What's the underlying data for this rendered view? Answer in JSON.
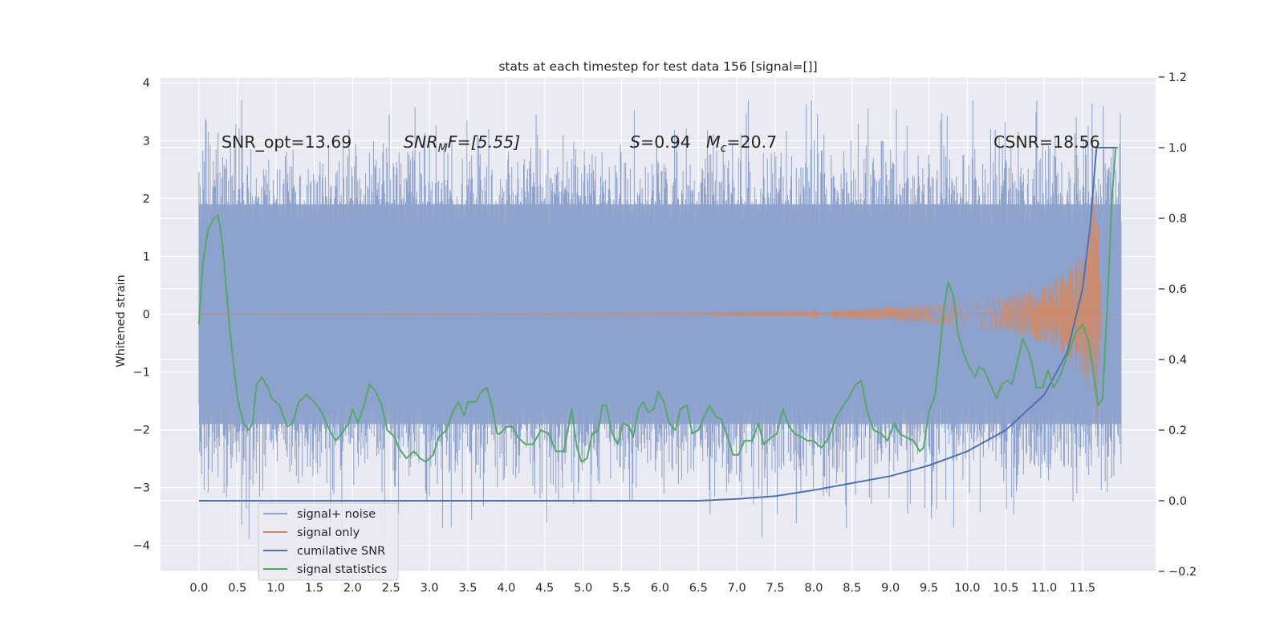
{
  "chart_data": {
    "type": "line",
    "title": "stats at each timestep for test data 156 [signal=[]]",
    "xlabel": "",
    "ylabel": "Whitened strain",
    "xlim": [
      -0.5,
      12.45
    ],
    "ylim": [
      -4.45,
      4.1
    ],
    "y2lim": [
      -0.2,
      1.2
    ],
    "xticks": [
      "0.0",
      "0.5",
      "1.0",
      "1.5",
      "2.0",
      "2.5",
      "3.0",
      "3.5",
      "4.0",
      "4.5",
      "5.0",
      "5.5",
      "6.0",
      "6.5",
      "7.0",
      "7.5",
      "8.0",
      "8.5",
      "9.0",
      "9.5",
      "10.0",
      "10.5",
      "11.0",
      "11.5"
    ],
    "yticks": [
      "−4",
      "−3",
      "−2",
      "−1",
      "0",
      "1",
      "2",
      "3",
      "4"
    ],
    "y2ticks": [
      "−0.2",
      "0.0",
      "0.2",
      "0.4",
      "0.6",
      "0.8",
      "1.0",
      "1.2"
    ],
    "grid": true,
    "legend_position": "lower-left",
    "annotations": {
      "snr_opt": "SNR_opt=13.69",
      "snr_mf_base": "SNR",
      "snr_mf_sub": "M",
      "snr_mf_rest": "F=[5.55]",
      "s_var": "S",
      "s_val": "=0.94",
      "mc_var": "M",
      "mc_sub": "c",
      "mc_val": "=20.7",
      "csnr": "CSNR=18.56"
    },
    "series": [
      {
        "name": "signal+ noise",
        "color": "#8da2cc",
        "axis": "left",
        "style": "noise band, approx ±1.9 core with spikes to ±3.7",
        "x_range": [
          0.0,
          12.0
        ]
      },
      {
        "name": "signal only",
        "color": "#dd8452",
        "axis": "left",
        "style": "chirp, growing amplitude",
        "amplitude_points": [
          [
            0.0,
            0.0
          ],
          [
            6.5,
            0.02
          ],
          [
            8.0,
            0.06
          ],
          [
            9.5,
            0.15
          ],
          [
            10.5,
            0.3
          ],
          [
            11.0,
            0.5
          ],
          [
            11.3,
            0.75
          ],
          [
            11.5,
            1.1
          ],
          [
            11.6,
            1.5
          ],
          [
            11.68,
            2.4
          ],
          [
            11.75,
            0.0
          ]
        ]
      },
      {
        "name": "cumilative SNR",
        "color": "#4c72b0",
        "axis": "right",
        "points": [
          [
            0.0,
            0.0
          ],
          [
            6.5,
            0.0
          ],
          [
            7.0,
            0.005
          ],
          [
            7.5,
            0.013
          ],
          [
            8.0,
            0.03
          ],
          [
            8.5,
            0.05
          ],
          [
            9.0,
            0.07
          ],
          [
            9.5,
            0.1
          ],
          [
            10.0,
            0.14
          ],
          [
            10.5,
            0.2
          ],
          [
            11.0,
            0.3
          ],
          [
            11.3,
            0.42
          ],
          [
            11.5,
            0.6
          ],
          [
            11.6,
            0.78
          ],
          [
            11.68,
            1.0
          ],
          [
            11.95,
            1.0
          ]
        ]
      },
      {
        "name": "signal statistics",
        "color": "#55a868",
        "axis": "right",
        "points": [
          [
            0.0,
            0.5
          ],
          [
            0.05,
            0.67
          ],
          [
            0.12,
            0.77
          ],
          [
            0.2,
            0.8
          ],
          [
            0.25,
            0.81
          ],
          [
            0.3,
            0.74
          ],
          [
            0.4,
            0.49
          ],
          [
            0.5,
            0.29
          ],
          [
            0.58,
            0.22
          ],
          [
            0.65,
            0.2
          ],
          [
            0.7,
            0.22
          ],
          [
            0.75,
            0.33
          ],
          [
            0.82,
            0.35
          ],
          [
            0.9,
            0.32
          ],
          [
            0.95,
            0.29
          ],
          [
            1.05,
            0.27
          ],
          [
            1.15,
            0.21
          ],
          [
            1.22,
            0.22
          ],
          [
            1.3,
            0.28
          ],
          [
            1.4,
            0.3
          ],
          [
            1.5,
            0.28
          ],
          [
            1.6,
            0.25
          ],
          [
            1.7,
            0.2
          ],
          [
            1.78,
            0.17
          ],
          [
            1.86,
            0.19
          ],
          [
            1.95,
            0.22
          ],
          [
            2.0,
            0.26
          ],
          [
            2.07,
            0.22
          ],
          [
            2.15,
            0.27
          ],
          [
            2.22,
            0.33
          ],
          [
            2.3,
            0.31
          ],
          [
            2.38,
            0.27
          ],
          [
            2.45,
            0.2
          ],
          [
            2.55,
            0.18
          ],
          [
            2.6,
            0.15
          ],
          [
            2.7,
            0.12
          ],
          [
            2.8,
            0.14
          ],
          [
            2.88,
            0.12
          ],
          [
            2.95,
            0.11
          ],
          [
            3.05,
            0.13
          ],
          [
            3.12,
            0.18
          ],
          [
            3.22,
            0.2
          ],
          [
            3.3,
            0.25
          ],
          [
            3.38,
            0.28
          ],
          [
            3.45,
            0.24
          ],
          [
            3.5,
            0.28
          ],
          [
            3.6,
            0.28
          ],
          [
            3.68,
            0.31
          ],
          [
            3.75,
            0.32
          ],
          [
            3.82,
            0.26
          ],
          [
            3.88,
            0.19
          ],
          [
            3.92,
            0.19
          ],
          [
            4.0,
            0.21
          ],
          [
            4.08,
            0.21
          ],
          [
            4.15,
            0.18
          ],
          [
            4.25,
            0.16
          ],
          [
            4.35,
            0.16
          ],
          [
            4.45,
            0.2
          ],
          [
            4.55,
            0.19
          ],
          [
            4.65,
            0.14
          ],
          [
            4.75,
            0.14
          ],
          [
            4.85,
            0.26
          ],
          [
            4.92,
            0.15
          ],
          [
            4.98,
            0.11
          ],
          [
            5.05,
            0.12
          ],
          [
            5.12,
            0.19
          ],
          [
            5.2,
            0.2
          ],
          [
            5.25,
            0.27
          ],
          [
            5.3,
            0.27
          ],
          [
            5.38,
            0.19
          ],
          [
            5.45,
            0.16
          ],
          [
            5.52,
            0.22
          ],
          [
            5.6,
            0.21
          ],
          [
            5.65,
            0.18
          ],
          [
            5.72,
            0.26
          ],
          [
            5.78,
            0.28
          ],
          [
            5.85,
            0.25
          ],
          [
            5.92,
            0.26
          ],
          [
            5.98,
            0.31
          ],
          [
            6.05,
            0.28
          ],
          [
            6.12,
            0.22
          ],
          [
            6.2,
            0.2
          ],
          [
            6.27,
            0.26
          ],
          [
            6.35,
            0.27
          ],
          [
            6.42,
            0.19
          ],
          [
            6.5,
            0.2
          ],
          [
            6.58,
            0.24
          ],
          [
            6.65,
            0.27
          ],
          [
            6.72,
            0.24
          ],
          [
            6.8,
            0.23
          ],
          [
            6.88,
            0.18
          ],
          [
            6.95,
            0.13
          ],
          [
            7.02,
            0.13
          ],
          [
            7.1,
            0.17
          ],
          [
            7.2,
            0.17
          ],
          [
            7.28,
            0.22
          ],
          [
            7.35,
            0.16
          ],
          [
            7.45,
            0.18
          ],
          [
            7.52,
            0.19
          ],
          [
            7.6,
            0.26
          ],
          [
            7.68,
            0.21
          ],
          [
            7.75,
            0.19
          ],
          [
            7.85,
            0.18
          ],
          [
            7.92,
            0.17
          ],
          [
            8.0,
            0.17
          ],
          [
            8.1,
            0.15
          ],
          [
            8.2,
            0.18
          ],
          [
            8.3,
            0.24
          ],
          [
            8.45,
            0.29
          ],
          [
            8.55,
            0.33
          ],
          [
            8.62,
            0.34
          ],
          [
            8.7,
            0.25
          ],
          [
            8.78,
            0.2
          ],
          [
            8.88,
            0.19
          ],
          [
            8.96,
            0.17
          ],
          [
            9.05,
            0.22
          ],
          [
            9.12,
            0.19
          ],
          [
            9.2,
            0.18
          ],
          [
            9.3,
            0.17
          ],
          [
            9.38,
            0.14
          ],
          [
            9.43,
            0.15
          ],
          [
            9.5,
            0.25
          ],
          [
            9.58,
            0.3
          ],
          [
            9.63,
            0.4
          ],
          [
            9.7,
            0.55
          ],
          [
            9.75,
            0.62
          ],
          [
            9.82,
            0.58
          ],
          [
            9.88,
            0.47
          ],
          [
            9.95,
            0.42
          ],
          [
            10.02,
            0.38
          ],
          [
            10.1,
            0.35
          ],
          [
            10.15,
            0.38
          ],
          [
            10.22,
            0.37
          ],
          [
            10.3,
            0.33
          ],
          [
            10.38,
            0.29
          ],
          [
            10.45,
            0.33
          ],
          [
            10.52,
            0.34
          ],
          [
            10.58,
            0.33
          ],
          [
            10.65,
            0.39
          ],
          [
            10.72,
            0.46
          ],
          [
            10.8,
            0.42
          ],
          [
            10.85,
            0.38
          ],
          [
            10.9,
            0.32
          ],
          [
            10.98,
            0.32
          ],
          [
            11.05,
            0.37
          ],
          [
            11.12,
            0.32
          ],
          [
            11.2,
            0.35
          ],
          [
            11.25,
            0.38
          ],
          [
            11.32,
            0.42
          ],
          [
            11.42,
            0.48
          ],
          [
            11.5,
            0.5
          ],
          [
            11.58,
            0.45
          ],
          [
            11.63,
            0.38
          ],
          [
            11.7,
            0.27
          ],
          [
            11.76,
            0.29
          ],
          [
            11.82,
            0.55
          ],
          [
            11.88,
            0.85
          ],
          [
            11.93,
            1.0
          ],
          [
            11.96,
            1.0
          ]
        ]
      }
    ]
  }
}
